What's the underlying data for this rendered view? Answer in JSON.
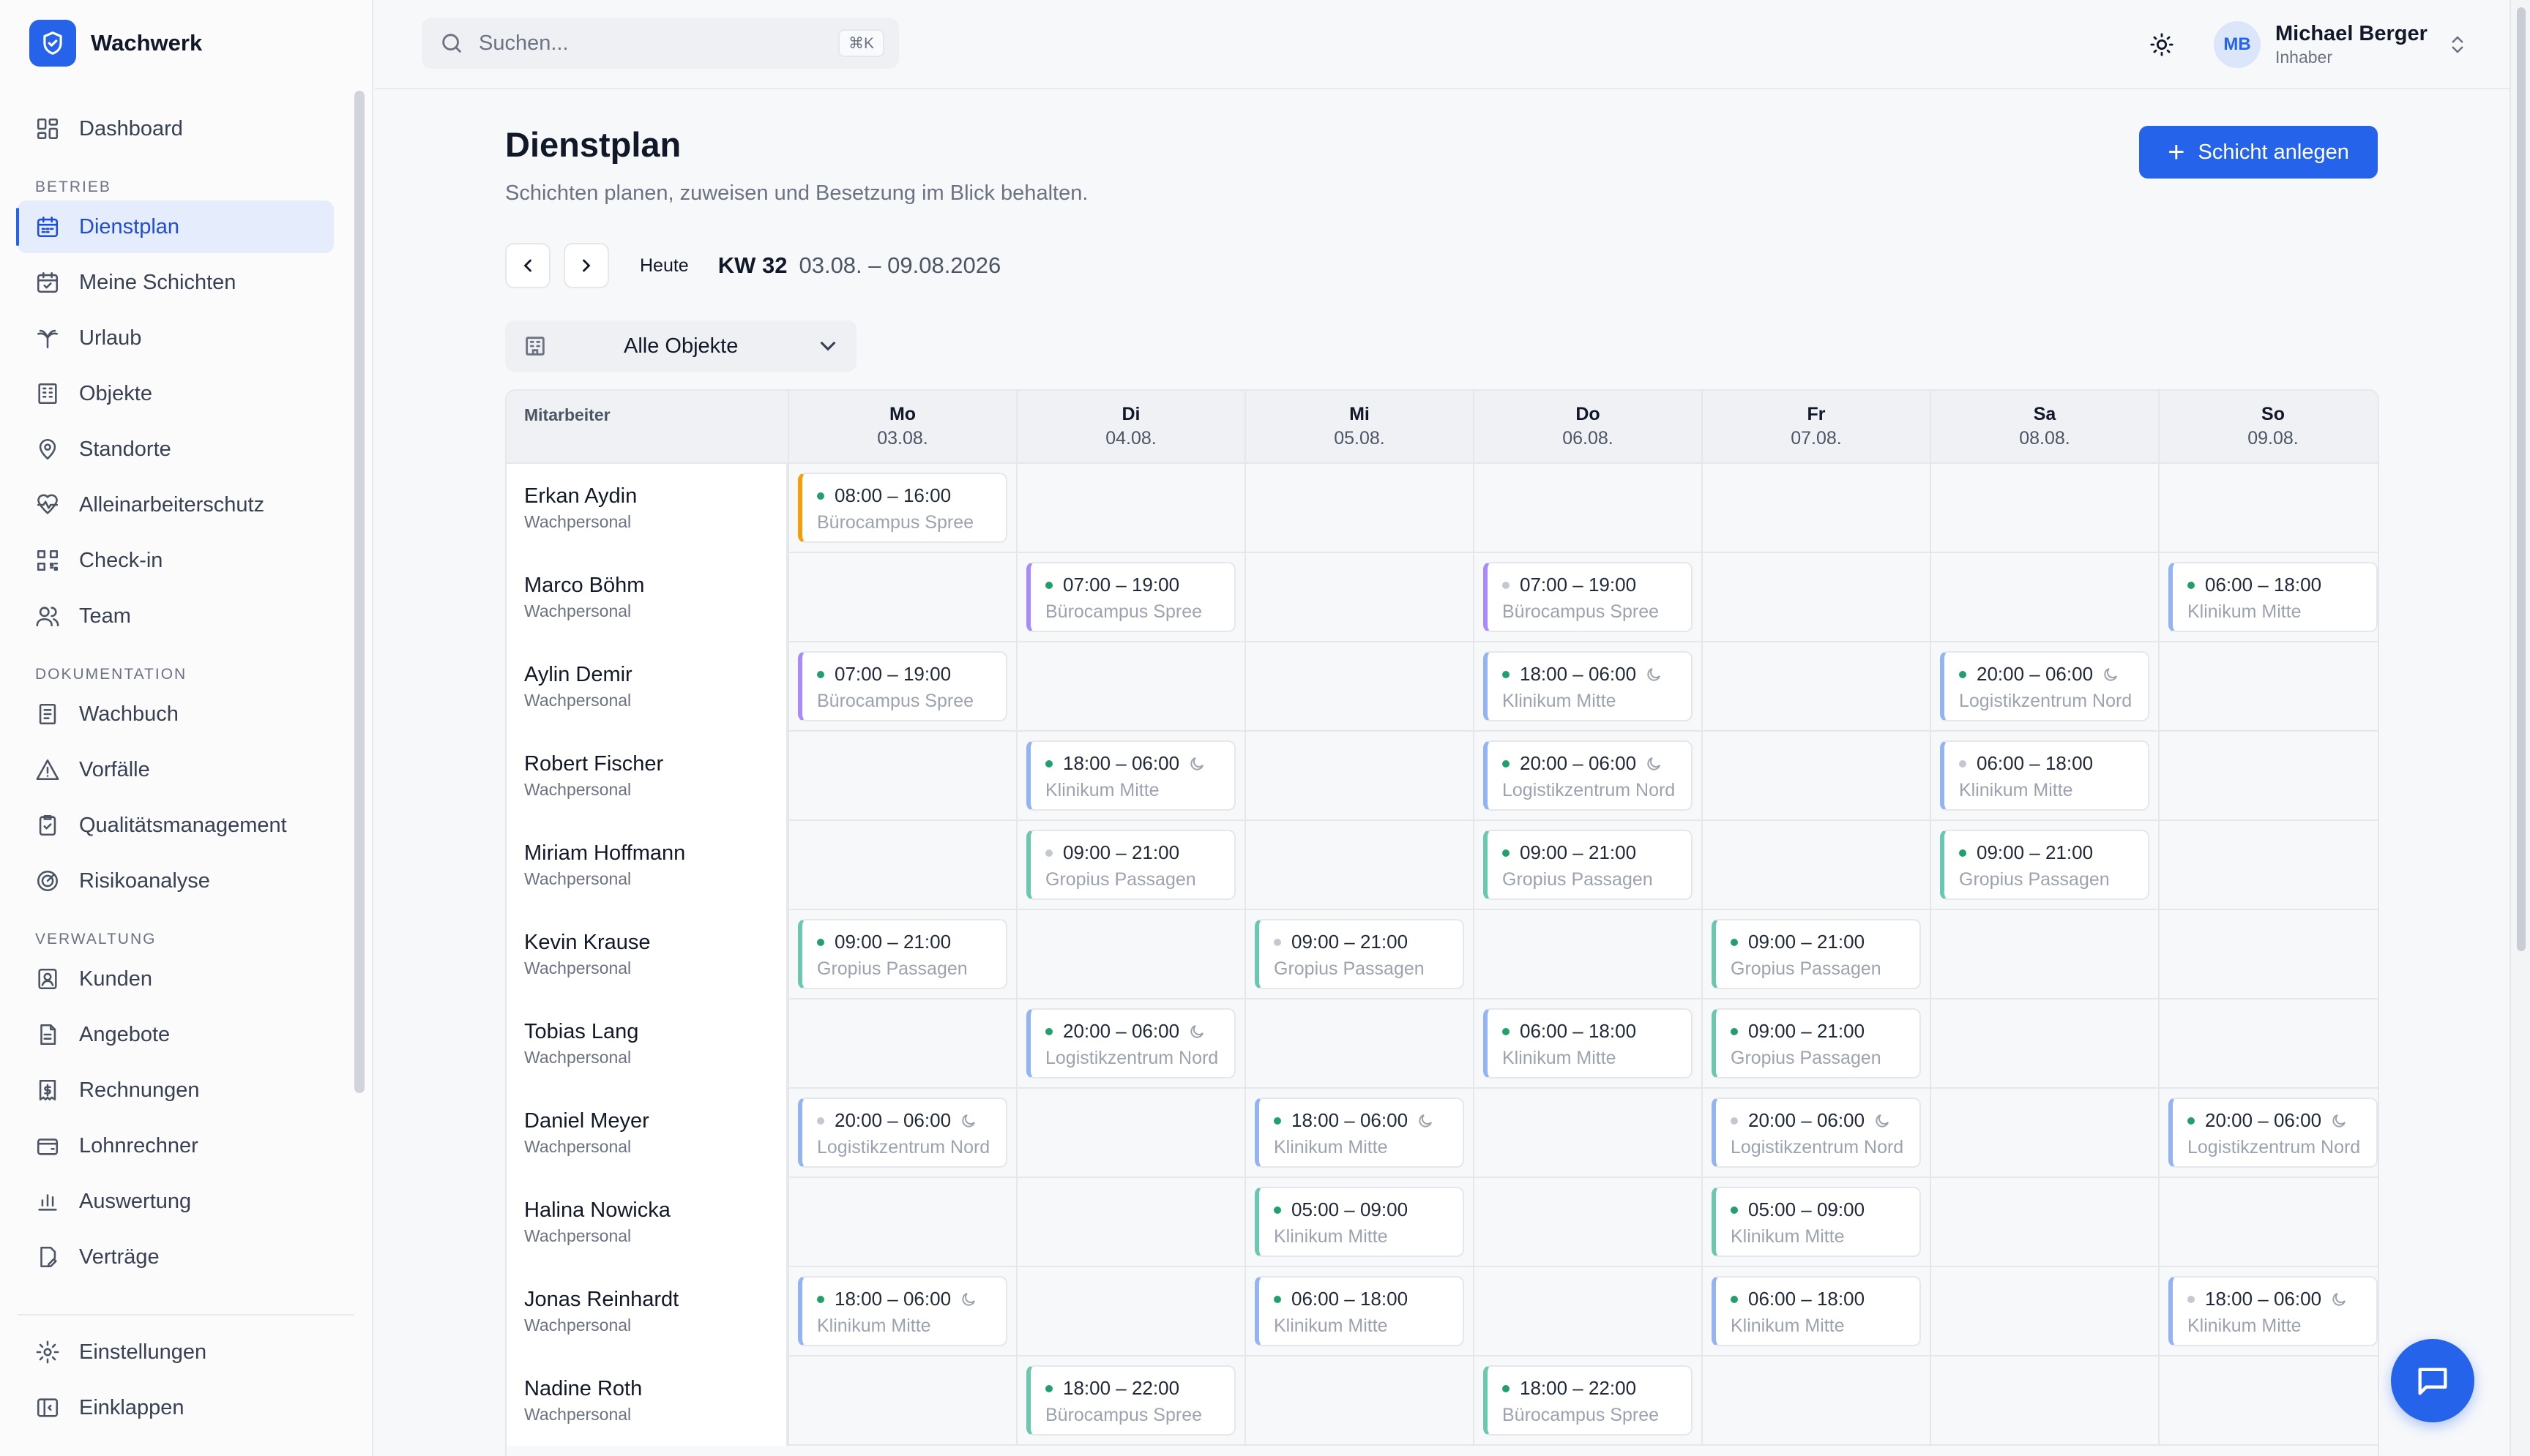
{
  "app": {
    "name": "Wachwerk"
  },
  "colors": {
    "accent": "#2563eb",
    "orange": "#f59e0b",
    "purple": "#a78bfa",
    "teal": "#6cc7b0",
    "blue": "#93b4f0",
    "dot_green": "#22a06b",
    "dot_gray": "#c4c9d1"
  },
  "sidebar": {
    "top": [
      {
        "label": "Dashboard",
        "icon": "dashboard-icon"
      }
    ],
    "sections": [
      {
        "title": "BETRIEB",
        "items": [
          {
            "label": "Dienstplan",
            "icon": "calendar-icon",
            "active": true
          },
          {
            "label": "Meine Schichten",
            "icon": "calendar-check-icon"
          },
          {
            "label": "Urlaub",
            "icon": "palm-tree-icon"
          },
          {
            "label": "Objekte",
            "icon": "building-icon"
          },
          {
            "label": "Standorte",
            "icon": "map-pin-icon"
          },
          {
            "label": "Alleinarbeiterschutz",
            "icon": "heart-pulse-icon"
          },
          {
            "label": "Check-in",
            "icon": "qr-code-icon"
          },
          {
            "label": "Team",
            "icon": "users-icon"
          }
        ]
      },
      {
        "title": "DOKUMENTATION",
        "items": [
          {
            "label": "Wachbuch",
            "icon": "book-icon"
          },
          {
            "label": "Vorfälle",
            "icon": "alert-triangle-icon"
          },
          {
            "label": "Qualitätsmanagement",
            "icon": "clipboard-check-icon"
          },
          {
            "label": "Risikoanalyse",
            "icon": "radar-icon"
          }
        ]
      },
      {
        "title": "VERWALTUNG",
        "items": [
          {
            "label": "Kunden",
            "icon": "contact-icon"
          },
          {
            "label": "Angebote",
            "icon": "file-text-icon"
          },
          {
            "label": "Rechnungen",
            "icon": "receipt-icon"
          },
          {
            "label": "Lohnrechner",
            "icon": "wallet-icon"
          },
          {
            "label": "Auswertung",
            "icon": "bar-chart-icon"
          },
          {
            "label": "Verträge",
            "icon": "file-signature-icon"
          }
        ]
      }
    ],
    "footer": [
      {
        "label": "Einstellungen",
        "icon": "settings-icon"
      },
      {
        "label": "Einklappen",
        "icon": "collapse-sidebar-icon"
      }
    ]
  },
  "topbar": {
    "search_placeholder": "Suchen...",
    "search_shortcut": "⌘K",
    "user": {
      "initials": "MB",
      "name": "Michael Berger",
      "role": "Inhaber"
    }
  },
  "page": {
    "title": "Dienstplan",
    "subtitle": "Schichten planen, zuweisen und Besetzung im Blick behalten.",
    "create_button": "Schicht anlegen",
    "today": "Heute",
    "week": "KW 32",
    "range": "03.08. – 09.08.2026",
    "filter": "Alle Objekte"
  },
  "grid": {
    "employee_header": "Mitarbeiter",
    "days": [
      {
        "name": "Mo",
        "date": "03.08."
      },
      {
        "name": "Di",
        "date": "04.08."
      },
      {
        "name": "Mi",
        "date": "05.08."
      },
      {
        "name": "Do",
        "date": "06.08."
      },
      {
        "name": "Fr",
        "date": "07.08."
      },
      {
        "name": "Sa",
        "date": "08.08."
      },
      {
        "name": "So",
        "date": "09.08."
      }
    ],
    "rows": [
      {
        "name": "Erkan Aydin",
        "role": "Wachpersonal",
        "shifts": [
          {
            "day": 0,
            "time": "08:00 – 16:00",
            "loc": "Bürocampus Spree",
            "color": "orange",
            "status": "green",
            "night": false
          }
        ]
      },
      {
        "name": "Marco Böhm",
        "role": "Wachpersonal",
        "shifts": [
          {
            "day": 1,
            "time": "07:00 – 19:00",
            "loc": "Bürocampus Spree",
            "color": "purple",
            "status": "green",
            "night": false
          },
          {
            "day": 3,
            "time": "07:00 – 19:00",
            "loc": "Bürocampus Spree",
            "color": "purple",
            "status": "gray",
            "night": false
          },
          {
            "day": 6,
            "time": "06:00 – 18:00",
            "loc": "Klinikum Mitte",
            "color": "blue",
            "status": "green",
            "night": false
          }
        ]
      },
      {
        "name": "Aylin Demir",
        "role": "Wachpersonal",
        "shifts": [
          {
            "day": 0,
            "time": "07:00 – 19:00",
            "loc": "Bürocampus Spree",
            "color": "purple",
            "status": "green",
            "night": false
          },
          {
            "day": 3,
            "time": "18:00 – 06:00",
            "loc": "Klinikum Mitte",
            "color": "blue",
            "status": "green",
            "night": true
          },
          {
            "day": 5,
            "time": "20:00 – 06:00",
            "loc": "Logistikzentrum Nord",
            "color": "blue",
            "status": "green",
            "night": true
          }
        ]
      },
      {
        "name": "Robert Fischer",
        "role": "Wachpersonal",
        "shifts": [
          {
            "day": 1,
            "time": "18:00 – 06:00",
            "loc": "Klinikum Mitte",
            "color": "blue",
            "status": "green",
            "night": true
          },
          {
            "day": 3,
            "time": "20:00 – 06:00",
            "loc": "Logistikzentrum Nord",
            "color": "blue",
            "status": "green",
            "night": true
          },
          {
            "day": 5,
            "time": "06:00 – 18:00",
            "loc": "Klinikum Mitte",
            "color": "blue",
            "status": "gray",
            "night": false
          }
        ]
      },
      {
        "name": "Miriam Hoffmann",
        "role": "Wachpersonal",
        "shifts": [
          {
            "day": 1,
            "time": "09:00 – 21:00",
            "loc": "Gropius Passagen",
            "color": "teal",
            "status": "gray",
            "night": false
          },
          {
            "day": 3,
            "time": "09:00 – 21:00",
            "loc": "Gropius Passagen",
            "color": "teal",
            "status": "green",
            "night": false
          },
          {
            "day": 5,
            "time": "09:00 – 21:00",
            "loc": "Gropius Passagen",
            "color": "teal",
            "status": "green",
            "night": false
          }
        ]
      },
      {
        "name": "Kevin Krause",
        "role": "Wachpersonal",
        "shifts": [
          {
            "day": 0,
            "time": "09:00 – 21:00",
            "loc": "Gropius Passagen",
            "color": "teal",
            "status": "green",
            "night": false
          },
          {
            "day": 2,
            "time": "09:00 – 21:00",
            "loc": "Gropius Passagen",
            "color": "teal",
            "status": "gray",
            "night": false
          },
          {
            "day": 4,
            "time": "09:00 – 21:00",
            "loc": "Gropius Passagen",
            "color": "teal",
            "status": "green",
            "night": false
          }
        ]
      },
      {
        "name": "Tobias Lang",
        "role": "Wachpersonal",
        "shifts": [
          {
            "day": 1,
            "time": "20:00 – 06:00",
            "loc": "Logistikzentrum Nord",
            "color": "blue",
            "status": "green",
            "night": true
          },
          {
            "day": 3,
            "time": "06:00 – 18:00",
            "loc": "Klinikum Mitte",
            "color": "blue",
            "status": "green",
            "night": false
          },
          {
            "day": 4,
            "time": "09:00 – 21:00",
            "loc": "Gropius Passagen",
            "color": "teal",
            "status": "green",
            "night": false
          }
        ]
      },
      {
        "name": "Daniel Meyer",
        "role": "Wachpersonal",
        "shifts": [
          {
            "day": 0,
            "time": "20:00 – 06:00",
            "loc": "Logistikzentrum Nord",
            "color": "blue",
            "status": "gray",
            "night": true
          },
          {
            "day": 2,
            "time": "18:00 – 06:00",
            "loc": "Klinikum Mitte",
            "color": "blue",
            "status": "green",
            "night": true
          },
          {
            "day": 4,
            "time": "20:00 – 06:00",
            "loc": "Logistikzentrum Nord",
            "color": "blue",
            "status": "gray",
            "night": true
          },
          {
            "day": 6,
            "time": "20:00 – 06:00",
            "loc": "Logistikzentrum Nord",
            "color": "blue",
            "status": "green",
            "night": true
          }
        ]
      },
      {
        "name": "Halina Nowicka",
        "role": "Wachpersonal",
        "shifts": [
          {
            "day": 2,
            "time": "05:00 – 09:00",
            "loc": "Klinikum Mitte",
            "color": "teal",
            "status": "green",
            "night": false
          },
          {
            "day": 4,
            "time": "05:00 – 09:00",
            "loc": "Klinikum Mitte",
            "color": "teal",
            "status": "green",
            "night": false
          }
        ]
      },
      {
        "name": "Jonas Reinhardt",
        "role": "Wachpersonal",
        "shifts": [
          {
            "day": 0,
            "time": "18:00 – 06:00",
            "loc": "Klinikum Mitte",
            "color": "blue",
            "status": "green",
            "night": true
          },
          {
            "day": 2,
            "time": "06:00 – 18:00",
            "loc": "Klinikum Mitte",
            "color": "blue",
            "status": "green",
            "night": false
          },
          {
            "day": 4,
            "time": "06:00 – 18:00",
            "loc": "Klinikum Mitte",
            "color": "blue",
            "status": "green",
            "night": false
          },
          {
            "day": 6,
            "time": "18:00 – 06:00",
            "loc": "Klinikum Mitte",
            "color": "blue",
            "status": "gray",
            "night": true
          }
        ]
      },
      {
        "name": "Nadine Roth",
        "role": "Wachpersonal",
        "shifts": [
          {
            "day": 1,
            "time": "18:00 – 22:00",
            "loc": "Bürocampus Spree",
            "color": "teal",
            "status": "green",
            "night": false
          },
          {
            "day": 3,
            "time": "18:00 – 22:00",
            "loc": "Bürocampus Spree",
            "color": "teal",
            "status": "green",
            "night": false
          }
        ]
      }
    ]
  }
}
